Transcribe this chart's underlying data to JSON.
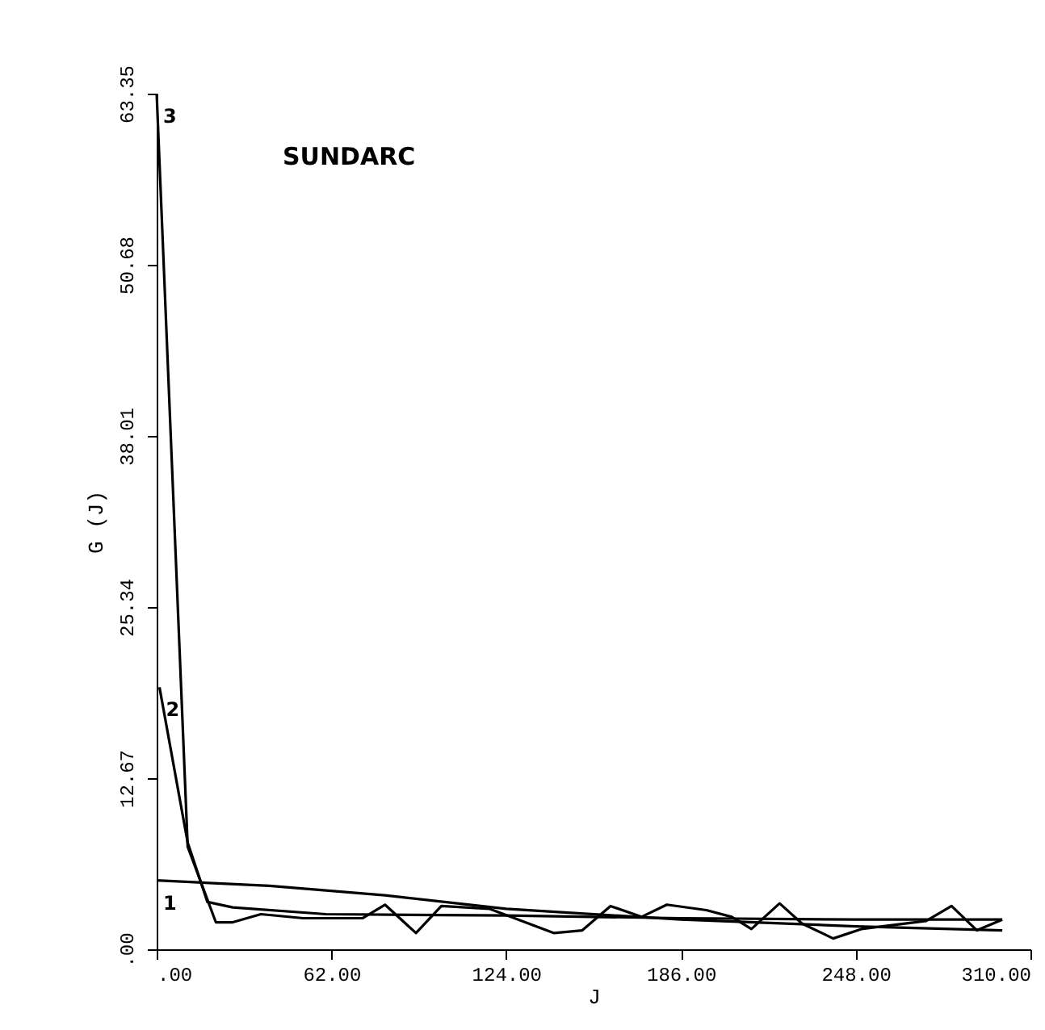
{
  "chart_data": {
    "type": "line",
    "title": "SUNDARC",
    "xlabel": "J",
    "ylabel": "G (J)",
    "xlim": [
      0,
      310
    ],
    "ylim": [
      0,
      63.35
    ],
    "xticks": [
      {
        "value": 0,
        "label": ".00"
      },
      {
        "value": 62,
        "label": "62.00"
      },
      {
        "value": 124,
        "label": "124.00"
      },
      {
        "value": 186,
        "label": "186.00"
      },
      {
        "value": 248,
        "label": "248.00"
      },
      {
        "value": 310,
        "label": "310.00"
      }
    ],
    "yticks": [
      {
        "value": 0,
        "label": ".00"
      },
      {
        "value": 12.67,
        "label": "12.67"
      },
      {
        "value": 25.34,
        "label": "25.34"
      },
      {
        "value": 38.01,
        "label": "38.01"
      },
      {
        "value": 50.68,
        "label": "50.68"
      },
      {
        "value": 63.35,
        "label": "63.35"
      }
    ],
    "grid": false,
    "legend": false,
    "marker": "none",
    "line_style": "solid",
    "series": [
      {
        "name": "1",
        "color": "#000000",
        "x": [
          0,
          40,
          81,
          124,
          186,
          248,
          300
        ],
        "values": [
          5.1,
          4.7,
          4.0,
          3.0,
          2.2,
          1.7,
          1.4
        ]
      },
      {
        "name": "2",
        "color": "#000000",
        "x": [
          1,
          11,
          18,
          27,
          60,
          124,
          186,
          248,
          300
        ],
        "values": [
          19.4,
          7.9,
          3.5,
          3.1,
          2.6,
          2.5,
          2.3,
          2.2,
          2.2
        ]
      },
      {
        "name": "3",
        "color": "#000000",
        "x": [
          0,
          11,
          21,
          27,
          37,
          52,
          73,
          81,
          92,
          101,
          118,
          141,
          151,
          161,
          172,
          181,
          195,
          204,
          211,
          221,
          229,
          240,
          250,
          273,
          282,
          291,
          300
        ],
        "values": [
          63.35,
          7.6,
          2.0,
          2.0,
          2.6,
          2.3,
          2.3,
          3.3,
          1.2,
          3.2,
          3.0,
          1.2,
          1.4,
          3.2,
          2.4,
          3.3,
          2.9,
          2.4,
          1.5,
          3.4,
          1.9,
          0.8,
          1.5,
          2.1,
          3.2,
          1.4,
          2.2
        ]
      }
    ]
  }
}
